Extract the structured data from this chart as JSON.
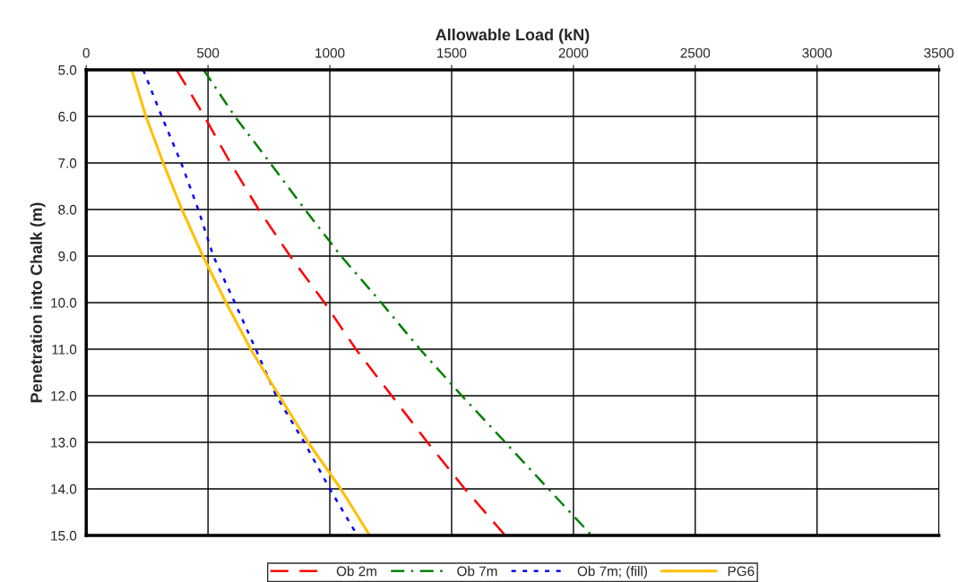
{
  "chart_data": {
    "type": "line",
    "xlabel": "Allowable Load (kN)",
    "ylabel": "Penetration into Chalk (m)",
    "xlim": [
      0,
      3500
    ],
    "xticks": [
      0,
      500,
      1000,
      1500,
      2000,
      2500,
      3000,
      3500
    ],
    "ylim": [
      15,
      5
    ],
    "yticks": [
      {
        "value": 5,
        "label": "5.0"
      },
      {
        "value": 6,
        "label": "6.0"
      },
      {
        "value": 7,
        "label": "7.0"
      },
      {
        "value": 8,
        "label": "8.0"
      },
      {
        "value": 9,
        "label": "9.0"
      },
      {
        "value": 10,
        "label": "10.0"
      },
      {
        "value": 11,
        "label": "11.0"
      },
      {
        "value": 12,
        "label": "12.0"
      },
      {
        "value": 13,
        "label": "13.0"
      },
      {
        "value": 14,
        "label": "14.0"
      },
      {
        "value": 15,
        "label": "15.0"
      }
    ],
    "grid": true,
    "legend": "bottom",
    "marker": "none",
    "series": [
      {
        "name": "Ob 2m",
        "color": "#ff0000",
        "line_style": "dashed",
        "x": [
          371,
          485,
          592,
          708,
          837,
          978,
          1107,
          1254,
          1401,
          1554,
          1720
        ],
        "values": [
          5,
          6,
          7,
          8,
          9,
          10,
          11,
          12,
          13,
          14,
          15
        ]
      },
      {
        "name": "Ob 7m",
        "color": "#008000",
        "line_style": "dashdot",
        "x": [
          482,
          610,
          755,
          898,
          1046,
          1211,
          1370,
          1542,
          1720,
          1897,
          2075
        ],
        "values": [
          5,
          6,
          7,
          8,
          9,
          10,
          11,
          12,
          13,
          14,
          15
        ]
      },
      {
        "name": "Ob 7m; (fill)",
        "color": "#0000ff",
        "line_style": "dotted",
        "x": [
          234,
          310,
          390,
          460,
          522,
          610,
          696,
          780,
          895,
          1000,
          1113
        ],
        "values": [
          5,
          6,
          7,
          8,
          9,
          10,
          11,
          12,
          13,
          14,
          15
        ]
      },
      {
        "name": "PG6",
        "color": "#ffc000",
        "line_style": "solid",
        "x": [
          187,
          245,
          316,
          393,
          479,
          574,
          675,
          792,
          911,
          1045,
          1164
        ],
        "values": [
          5,
          6,
          7,
          8,
          9,
          10,
          11,
          12,
          13,
          14,
          15
        ]
      }
    ]
  }
}
